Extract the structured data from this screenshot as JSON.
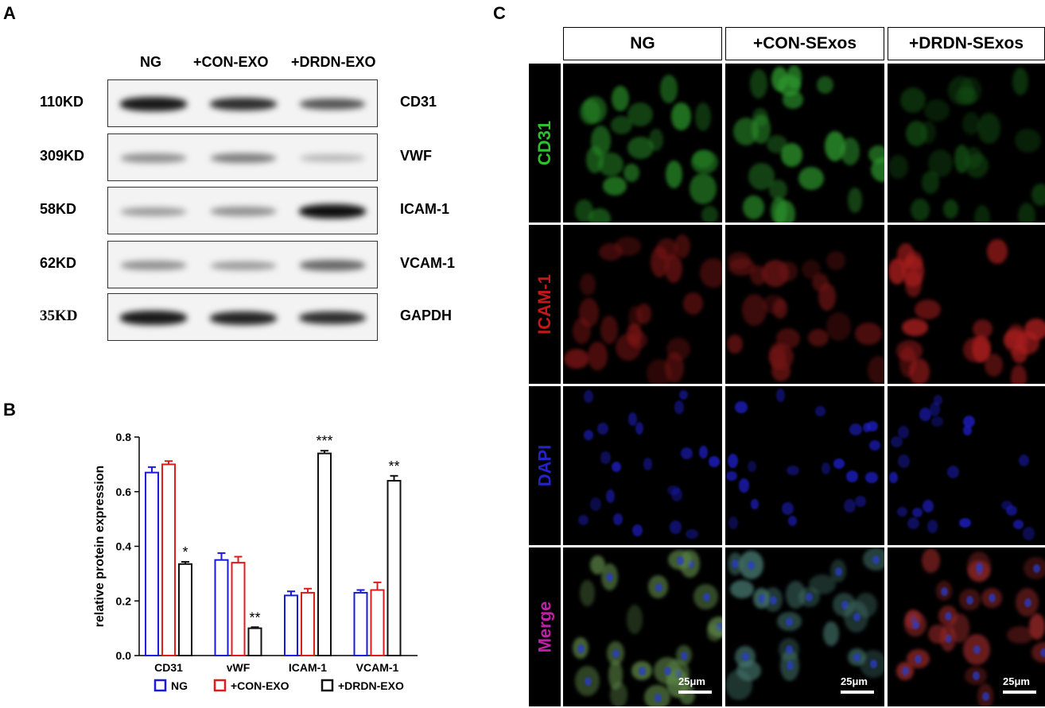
{
  "panels": {
    "a": "A",
    "b": "B",
    "c": "C"
  },
  "western_blot": {
    "groups": [
      "NG",
      "+CON-EXO",
      "+DRDN-EXO"
    ],
    "rows": [
      {
        "mw": "110KD",
        "protein": "CD31",
        "intensity": [
          0.95,
          0.85,
          0.65
        ]
      },
      {
        "mw": "309KD",
        "protein": "VWF",
        "intensity": [
          0.35,
          0.45,
          0.15
        ]
      },
      {
        "mw": "58KD",
        "protein": "ICAM-1",
        "intensity": [
          0.3,
          0.35,
          1.0
        ]
      },
      {
        "mw": "62KD",
        "protein": "VCAM-1",
        "intensity": [
          0.35,
          0.3,
          0.55
        ]
      },
      {
        "mw": "35KD",
        "protein": "GAPDH",
        "intensity": [
          0.95,
          0.9,
          0.85
        ]
      }
    ]
  },
  "chart_data": {
    "type": "bar",
    "categories": [
      "CD31",
      "vWF",
      "ICAM-1",
      "VCAM-1"
    ],
    "ylabel": "relative  protein expression",
    "ylim": [
      0,
      0.8
    ],
    "yticks": [
      "0.0",
      "0.2",
      "0.4",
      "0.6",
      "0.8"
    ],
    "legend_position": "bottom",
    "series": [
      {
        "name": "NG",
        "color": "#1a1adc",
        "values": [
          0.67,
          0.35,
          0.22,
          0.23
        ],
        "errors": [
          0.02,
          0.025,
          0.015,
          0.01
        ]
      },
      {
        "name": "+CON-EXO",
        "color": "#e01b1b",
        "values": [
          0.7,
          0.34,
          0.23,
          0.24
        ],
        "errors": [
          0.012,
          0.022,
          0.015,
          0.028
        ]
      },
      {
        "name": "+DRDN-EXO",
        "color": "#111111",
        "values": [
          0.335,
          0.1,
          0.74,
          0.64
        ],
        "errors": [
          0.008,
          0.004,
          0.01,
          0.018
        ]
      }
    ],
    "annotations": [
      "*",
      "**",
      "***",
      "**"
    ]
  },
  "microscopy": {
    "columns": [
      "NG",
      "+CON-SExos",
      "+DRDN-SExos"
    ],
    "rows": [
      {
        "label": "CD31",
        "color": "#2fbf2f"
      },
      {
        "label": "ICAM-1",
        "color": "#c41818"
      },
      {
        "label": "DAPI",
        "color": "#2323c8"
      },
      {
        "label": "Merge",
        "color": "#c020a8"
      }
    ],
    "scale_bar": "25μm"
  }
}
